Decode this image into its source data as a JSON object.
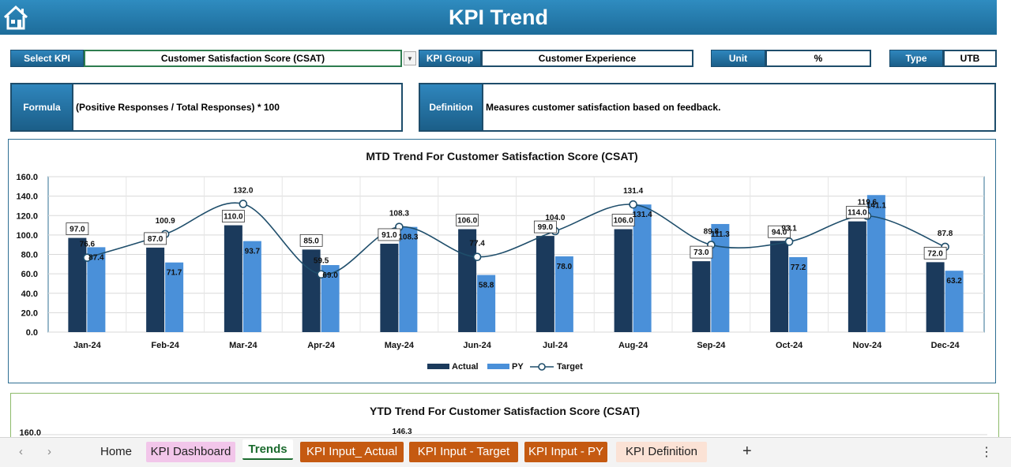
{
  "header": {
    "title": "KPI Trend"
  },
  "fields": {
    "select_kpi_label": "Select KPI",
    "select_kpi_value": "Customer Satisfaction Score (CSAT)",
    "kpi_group_label": "KPI Group",
    "kpi_group_value": "Customer Experience",
    "unit_label": "Unit",
    "unit_value": "%",
    "type_label": "Type",
    "type_value": "UTB"
  },
  "formula": {
    "label": "Formula",
    "text": "(Positive Responses / Total Responses) * 100"
  },
  "definition": {
    "label": "Definition",
    "text": "Measures customer satisfaction based on feedback."
  },
  "mtd_chart": {
    "title": "MTD Trend For Customer Satisfaction Score (CSAT)"
  },
  "ytd_chart": {
    "title": "YTD Trend For Customer Satisfaction Score (CSAT)",
    "visible_ytick": "160.0",
    "visible_label": "146.3"
  },
  "chart_data": {
    "type": "bar",
    "title": "MTD Trend For Customer Satisfaction Score (CSAT)",
    "categories": [
      "Jan-24",
      "Feb-24",
      "Mar-24",
      "Apr-24",
      "May-24",
      "Jun-24",
      "Jul-24",
      "Aug-24",
      "Sep-24",
      "Oct-24",
      "Nov-24",
      "Dec-24"
    ],
    "series": [
      {
        "name": "Actual",
        "type": "bar",
        "color": "#1b3a5c",
        "values": [
          97.0,
          87.0,
          110.0,
          85.0,
          91.0,
          106.0,
          99.0,
          106.0,
          73.0,
          94.0,
          114.0,
          72.0
        ]
      },
      {
        "name": "PY",
        "type": "bar",
        "color": "#4a90d9",
        "values": [
          87.4,
          71.7,
          93.7,
          69.0,
          108.3,
          58.8,
          78.0,
          131.4,
          111.3,
          77.2,
          141.1,
          63.2
        ]
      },
      {
        "name": "Target",
        "type": "line",
        "color": "#1f4e6b",
        "values": [
          76.6,
          100.9,
          132.0,
          59.5,
          108.3,
          77.4,
          104.0,
          131.4,
          89.8,
          93.1,
          119.6,
          87.8
        ]
      }
    ],
    "ylim": [
      0,
      160
    ],
    "yticks": [
      "0.0",
      "20.0",
      "40.0",
      "60.0",
      "80.0",
      "100.0",
      "120.0",
      "140.0",
      "160.0"
    ],
    "legend": "bottom"
  },
  "tabs": {
    "items": [
      {
        "label": "Home",
        "bg": "#f3f3f3",
        "fg": "#222222"
      },
      {
        "label": "KPI Dashboard",
        "bg": "#f2c6ea",
        "fg": "#222222"
      },
      {
        "label": "Trends",
        "bg": "#ffffff",
        "fg": "#1b6b2e",
        "active": true
      },
      {
        "label": "KPI Input_ Actual",
        "bg": "#c55a11",
        "fg": "#ffffff"
      },
      {
        "label": "KPI Input - Target",
        "bg": "#c55a11",
        "fg": "#ffffff"
      },
      {
        "label": "KPI Input - PY",
        "bg": "#c55a11",
        "fg": "#ffffff"
      },
      {
        "label": "KPI Definition",
        "bg": "#fbe2d5",
        "fg": "#222222"
      }
    ],
    "add_label": "+",
    "more_label": "⋮"
  }
}
